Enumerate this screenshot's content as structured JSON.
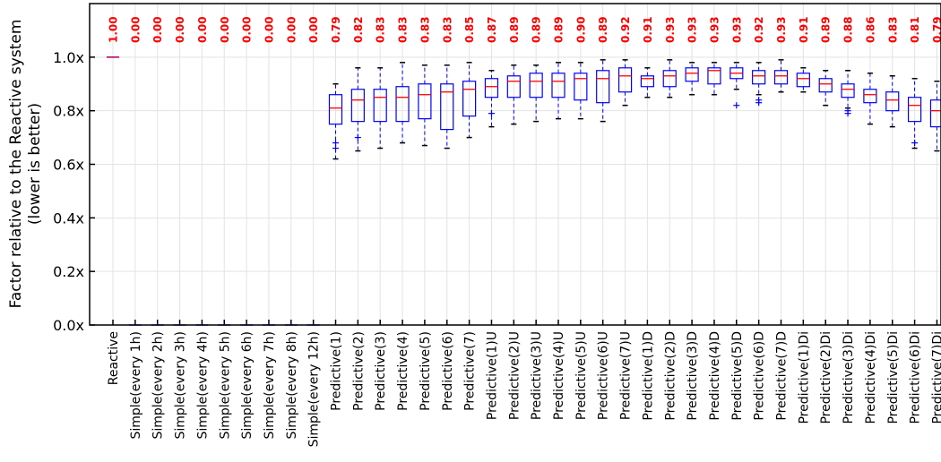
{
  "chart_data": {
    "type": "box",
    "ylabel": "Factor relative to the Reactive system",
    "ylabel2": "(lower is better)",
    "ylim": [
      0,
      1.2
    ],
    "yticks": [
      0,
      0.2,
      0.4,
      0.6,
      0.8,
      1.0
    ],
    "ytick_labels": [
      "0.0x",
      "0.2x",
      "0.4x",
      "0.6x",
      "0.8x",
      "1.0x"
    ],
    "grid": true,
    "colors": {
      "box": "#0000ff",
      "median": "#ff0000",
      "label": "#ff0000"
    },
    "categories": [
      {
        "name": "Reactive",
        "label": "1.00",
        "wlo": 1.0,
        "q1": 1.0,
        "med": 1.0,
        "q3": 1.0,
        "whi": 1.0,
        "fliers": []
      },
      {
        "name": "Simple(every 1h)",
        "label": "0.00",
        "wlo": 0,
        "q1": 0,
        "med": 0,
        "q3": 0,
        "whi": 0,
        "fliers": []
      },
      {
        "name": "Simple(every 2h)",
        "label": "0.00",
        "wlo": 0,
        "q1": 0,
        "med": 0,
        "q3": 0,
        "whi": 0,
        "fliers": []
      },
      {
        "name": "Simple(every 3h)",
        "label": "0.00",
        "wlo": 0,
        "q1": 0,
        "med": 0,
        "q3": 0,
        "whi": 0,
        "fliers": []
      },
      {
        "name": "Simple(every 4h)",
        "label": "0.00",
        "wlo": 0,
        "q1": 0,
        "med": 0,
        "q3": 0,
        "whi": 0,
        "fliers": []
      },
      {
        "name": "Simple(every 5h)",
        "label": "0.00",
        "wlo": 0,
        "q1": 0,
        "med": 0,
        "q3": 0,
        "whi": 0,
        "fliers": []
      },
      {
        "name": "Simple(every 6h)",
        "label": "0.00",
        "wlo": 0,
        "q1": 0,
        "med": 0,
        "q3": 0,
        "whi": 0,
        "fliers": []
      },
      {
        "name": "Simple(every 7h)",
        "label": "0.00",
        "wlo": 0,
        "q1": 0,
        "med": 0,
        "q3": 0,
        "whi": 0,
        "fliers": []
      },
      {
        "name": "Simple(every 8h)",
        "label": "0.00",
        "wlo": 0,
        "q1": 0,
        "med": 0,
        "q3": 0,
        "whi": 0,
        "fliers": []
      },
      {
        "name": "Simple(every 12h)",
        "label": "0.00",
        "wlo": 0,
        "q1": 0,
        "med": 0,
        "q3": 0,
        "whi": 0,
        "fliers": []
      },
      {
        "name": "Predictive(1)",
        "label": "0.79",
        "wlo": 0.62,
        "q1": 0.75,
        "med": 0.81,
        "q3": 0.86,
        "whi": 0.9,
        "fliers": [
          0.68,
          0.66
        ]
      },
      {
        "name": "Predictive(2)",
        "label": "0.82",
        "wlo": 0.65,
        "q1": 0.76,
        "med": 0.84,
        "q3": 0.88,
        "whi": 0.96,
        "fliers": [
          0.7
        ]
      },
      {
        "name": "Predictive(3)",
        "label": "0.83",
        "wlo": 0.66,
        "q1": 0.76,
        "med": 0.85,
        "q3": 0.88,
        "whi": 0.96,
        "fliers": []
      },
      {
        "name": "Predictive(4)",
        "label": "0.83",
        "wlo": 0.68,
        "q1": 0.76,
        "med": 0.85,
        "q3": 0.89,
        "whi": 0.98,
        "fliers": []
      },
      {
        "name": "Predictive(5)",
        "label": "0.83",
        "wlo": 0.67,
        "q1": 0.77,
        "med": 0.86,
        "q3": 0.9,
        "whi": 0.97,
        "fliers": []
      },
      {
        "name": "Predictive(6)",
        "label": "0.83",
        "wlo": 0.66,
        "q1": 0.73,
        "med": 0.87,
        "q3": 0.9,
        "whi": 0.97,
        "fliers": []
      },
      {
        "name": "Predictive(7)",
        "label": "0.85",
        "wlo": 0.7,
        "q1": 0.78,
        "med": 0.88,
        "q3": 0.91,
        "whi": 0.98,
        "fliers": []
      },
      {
        "name": "Predictive(1)U",
        "label": "0.87",
        "wlo": 0.74,
        "q1": 0.85,
        "med": 0.89,
        "q3": 0.92,
        "whi": 0.95,
        "fliers": [
          0.79
        ]
      },
      {
        "name": "Predictive(2)U",
        "label": "0.89",
        "wlo": 0.75,
        "q1": 0.85,
        "med": 0.91,
        "q3": 0.93,
        "whi": 0.97,
        "fliers": []
      },
      {
        "name": "Predictive(3)U",
        "label": "0.89",
        "wlo": 0.76,
        "q1": 0.85,
        "med": 0.91,
        "q3": 0.94,
        "whi": 0.97,
        "fliers": []
      },
      {
        "name": "Predictive(4)U",
        "label": "0.89",
        "wlo": 0.77,
        "q1": 0.85,
        "med": 0.91,
        "q3": 0.94,
        "whi": 0.98,
        "fliers": []
      },
      {
        "name": "Predictive(5)U",
        "label": "0.90",
        "wlo": 0.77,
        "q1": 0.84,
        "med": 0.92,
        "q3": 0.94,
        "whi": 0.98,
        "fliers": []
      },
      {
        "name": "Predictive(6)U",
        "label": "0.89",
        "wlo": 0.76,
        "q1": 0.83,
        "med": 0.92,
        "q3": 0.95,
        "whi": 0.99,
        "fliers": []
      },
      {
        "name": "Predictive(7)U",
        "label": "0.92",
        "wlo": 0.82,
        "q1": 0.87,
        "med": 0.93,
        "q3": 0.96,
        "whi": 0.99,
        "fliers": []
      },
      {
        "name": "Predictive(1)D",
        "label": "0.91",
        "wlo": 0.85,
        "q1": 0.89,
        "med": 0.92,
        "q3": 0.93,
        "whi": 0.96,
        "fliers": []
      },
      {
        "name": "Predictive(2)D",
        "label": "0.93",
        "wlo": 0.85,
        "q1": 0.89,
        "med": 0.93,
        "q3": 0.95,
        "whi": 0.99,
        "fliers": []
      },
      {
        "name": "Predictive(3)D",
        "label": "0.93",
        "wlo": 0.86,
        "q1": 0.91,
        "med": 0.94,
        "q3": 0.96,
        "whi": 0.98,
        "fliers": []
      },
      {
        "name": "Predictive(4)D",
        "label": "0.93",
        "wlo": 0.86,
        "q1": 0.9,
        "med": 0.95,
        "q3": 0.96,
        "whi": 0.98,
        "fliers": []
      },
      {
        "name": "Predictive(5)D",
        "label": "0.93",
        "wlo": 0.88,
        "q1": 0.92,
        "med": 0.94,
        "q3": 0.96,
        "whi": 0.98,
        "fliers": [
          0.82
        ]
      },
      {
        "name": "Predictive(6)D",
        "label": "0.92",
        "wlo": 0.86,
        "q1": 0.9,
        "med": 0.93,
        "q3": 0.95,
        "whi": 0.98,
        "fliers": [
          0.84,
          0.83
        ]
      },
      {
        "name": "Predictive(7)D",
        "label": "0.93",
        "wlo": 0.87,
        "q1": 0.9,
        "med": 0.93,
        "q3": 0.95,
        "whi": 0.99,
        "fliers": []
      },
      {
        "name": "Predictive(1)Di",
        "label": "0.91",
        "wlo": 0.87,
        "q1": 0.89,
        "med": 0.92,
        "q3": 0.94,
        "whi": 0.96,
        "fliers": []
      },
      {
        "name": "Predictive(2)Di",
        "label": "0.89",
        "wlo": 0.82,
        "q1": 0.87,
        "med": 0.9,
        "q3": 0.92,
        "whi": 0.95,
        "fliers": []
      },
      {
        "name": "Predictive(3)Di",
        "label": "0.88",
        "wlo": 0.81,
        "q1": 0.85,
        "med": 0.88,
        "q3": 0.9,
        "whi": 0.95,
        "fliers": [
          0.79,
          0.8
        ]
      },
      {
        "name": "Predictive(4)Di",
        "label": "0.86",
        "wlo": 0.75,
        "q1": 0.83,
        "med": 0.86,
        "q3": 0.88,
        "whi": 0.94,
        "fliers": []
      },
      {
        "name": "Predictive(5)Di",
        "label": "0.83",
        "wlo": 0.74,
        "q1": 0.8,
        "med": 0.84,
        "q3": 0.87,
        "whi": 0.93,
        "fliers": []
      },
      {
        "name": "Predictive(6)Di",
        "label": "0.81",
        "wlo": 0.66,
        "q1": 0.76,
        "med": 0.82,
        "q3": 0.85,
        "whi": 0.92,
        "fliers": [
          0.68
        ]
      },
      {
        "name": "Predictive(7)Di",
        "label": "0.79",
        "wlo": 0.65,
        "q1": 0.74,
        "med": 0.8,
        "q3": 0.84,
        "whi": 0.91,
        "fliers": []
      }
    ]
  }
}
